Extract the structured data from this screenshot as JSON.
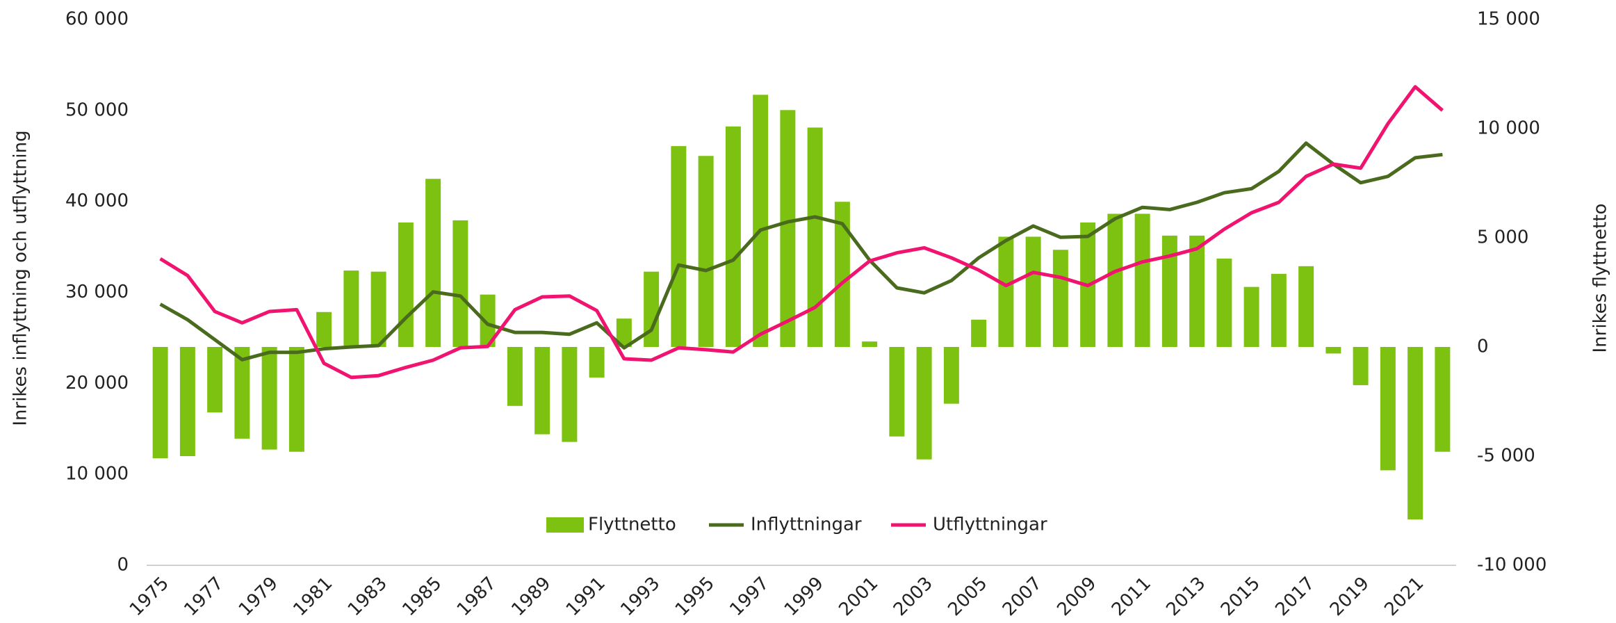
{
  "chart_data": {
    "type": "bar",
    "y_label": "Inrikes inflyttning och utflyttning",
    "y2_label": "Inrikes flyttnetto",
    "categories": [
      "1975",
      null,
      "1977",
      null,
      "1979",
      null,
      "1981",
      null,
      "1983",
      null,
      "1985",
      null,
      "1987",
      null,
      "1989",
      null,
      "1991",
      null,
      "1993",
      null,
      "1995",
      null,
      "1997",
      null,
      "1999",
      null,
      "2001",
      null,
      "2003",
      null,
      "2005",
      null,
      "2007",
      null,
      "2009",
      null,
      "2011",
      null,
      "2013",
      null,
      "2015",
      null,
      "2017",
      null,
      "2019",
      null,
      "2021",
      null
    ],
    "series": [
      {
        "name": "Flyttnetto",
        "type": "bar",
        "axis": "y2",
        "color": "#7dc210",
        "values": [
          -5100,
          -5000,
          -3000,
          -4200,
          -4700,
          -4800,
          1600,
          3500,
          3450,
          5700,
          7700,
          5800,
          2400,
          -2700,
          -4000,
          -4350,
          -1400,
          1300,
          3450,
          9200,
          8750,
          10100,
          11550,
          10850,
          10050,
          6650,
          250,
          -4100,
          -5150,
          -2600,
          1250,
          5050,
          5050,
          4450,
          5700,
          6100,
          6100,
          5100,
          5100,
          4050,
          2750,
          3350,
          3700,
          -300,
          -1750,
          -5650,
          -7900,
          -4800
        ]
      },
      {
        "name": "Inflyttningar",
        "type": "line",
        "color": "#4a6b1e",
        "values": [
          28700,
          27000,
          24800,
          22600,
          23400,
          23400,
          23800,
          24000,
          24150,
          27200,
          30050,
          29600,
          26500,
          25600,
          25600,
          25400,
          26650,
          23900,
          25850,
          33000,
          32400,
          33550,
          36850,
          37750,
          38300,
          37550,
          33550,
          30500,
          29950,
          31300,
          33800,
          35700,
          37300,
          36050,
          36150,
          38100,
          39350,
          39100,
          39900,
          40950,
          41400,
          43300,
          46400,
          44100,
          42050,
          42750,
          44800,
          45150
        ]
      },
      {
        "name": "Utflyttningar",
        "type": "line",
        "color": "#f0136f",
        "values": [
          33700,
          31850,
          27900,
          26650,
          27900,
          28100,
          22200,
          20650,
          20850,
          21750,
          22550,
          23900,
          24050,
          28100,
          29500,
          29600,
          28000,
          22700,
          22550,
          23900,
          23700,
          23450,
          25400,
          26850,
          28350,
          31050,
          33450,
          34350,
          34900,
          33800,
          32450,
          30750,
          32200,
          31650,
          30750,
          32300,
          33350,
          34000,
          34800,
          36950,
          38750,
          39900,
          42750,
          44100,
          43650,
          48550,
          52600,
          50000
        ]
      }
    ],
    "ylim": [
      0,
      60000
    ],
    "yticks": [
      0,
      {
        "value": 10000,
        "label": "10 000"
      },
      {
        "value": 20000,
        "label": "20 000"
      },
      {
        "value": 30000,
        "label": "30 000"
      },
      {
        "value": 40000,
        "label": "40 000"
      },
      {
        "value": 50000,
        "label": "50 000"
      },
      {
        "value": 60000,
        "label": "60 000"
      }
    ],
    "y2lim": [
      -10000,
      15000
    ],
    "y2ticks": [
      {
        "value": -10000,
        "label": "-10 000"
      },
      {
        "value": -5000,
        "label": "-5 000"
      },
      0,
      {
        "value": 5000,
        "label": "5 000"
      },
      {
        "value": 10000,
        "label": "10 000"
      },
      {
        "value": 15000,
        "label": "15 000"
      }
    ],
    "grid": false,
    "legend": "bottom"
  }
}
